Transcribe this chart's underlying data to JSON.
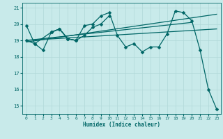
{
  "bg_color": "#c8eaea",
  "grid_color": "#b0d8d8",
  "line_color": "#006666",
  "xlim": [
    -0.5,
    23.5
  ],
  "ylim": [
    14.5,
    21.3
  ],
  "yticks": [
    15,
    16,
    17,
    18,
    19,
    20,
    21
  ],
  "xticks": [
    0,
    1,
    2,
    3,
    4,
    5,
    6,
    7,
    8,
    9,
    10,
    11,
    12,
    13,
    14,
    15,
    16,
    17,
    18,
    19,
    20,
    21,
    22,
    23
  ],
  "xlabel": "Humidex (Indice chaleur)",
  "series1": [
    19.9,
    18.8,
    18.4,
    19.5,
    19.7,
    19.1,
    19.0,
    19.9,
    20.0,
    20.5,
    20.7,
    19.3,
    18.6,
    18.8,
    18.3,
    18.6,
    18.6,
    19.4,
    20.8,
    20.7,
    20.2,
    18.4,
    16.0,
    14.8
  ],
  "series2_x": [
    0,
    1,
    3,
    4,
    5,
    6
  ],
  "series2_y": [
    19.0,
    18.8,
    19.5,
    19.7,
    19.1,
    19.0
  ],
  "series3_x": [
    3,
    4,
    5,
    6,
    7,
    8,
    9,
    10
  ],
  "series3_y": [
    19.5,
    19.7,
    19.1,
    19.0,
    19.3,
    19.8,
    20.0,
    20.5
  ],
  "trend1_x": [
    0,
    23
  ],
  "trend1_y": [
    18.9,
    20.6
  ],
  "trend2_x": [
    0,
    23
  ],
  "trend2_y": [
    19.0,
    19.7
  ],
  "trend3_x": [
    0,
    20
  ],
  "trend3_y": [
    19.0,
    20.1
  ]
}
